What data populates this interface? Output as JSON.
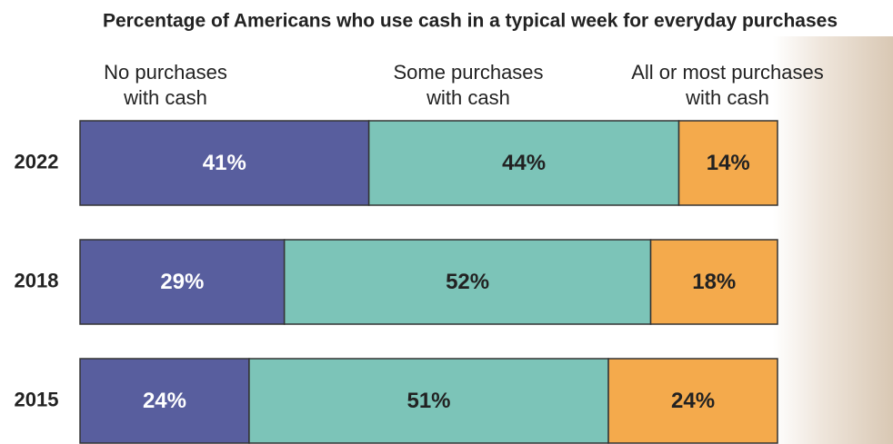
{
  "chart_data": {
    "type": "stacked-bar-horizontal",
    "title": "Percentage of Americans who use cash in a typical week for everyday purchases",
    "categories": [
      "2022",
      "2018",
      "2015"
    ],
    "series": [
      {
        "name": "No purchases with cash",
        "color": "#585e9e",
        "values": [
          41,
          29,
          24
        ],
        "value_labels": [
          "41%",
          "29%",
          "24%"
        ]
      },
      {
        "name": "Some purchases with cash",
        "color": "#7cc4b8",
        "values": [
          44,
          52,
          51
        ],
        "value_labels": [
          "44%",
          "52%",
          "51%"
        ]
      },
      {
        "name": "All or most purchases with cash",
        "color": "#f4aa4c",
        "values": [
          14,
          18,
          24
        ],
        "value_labels": [
          "14%",
          "18%",
          "24%"
        ]
      }
    ]
  }
}
